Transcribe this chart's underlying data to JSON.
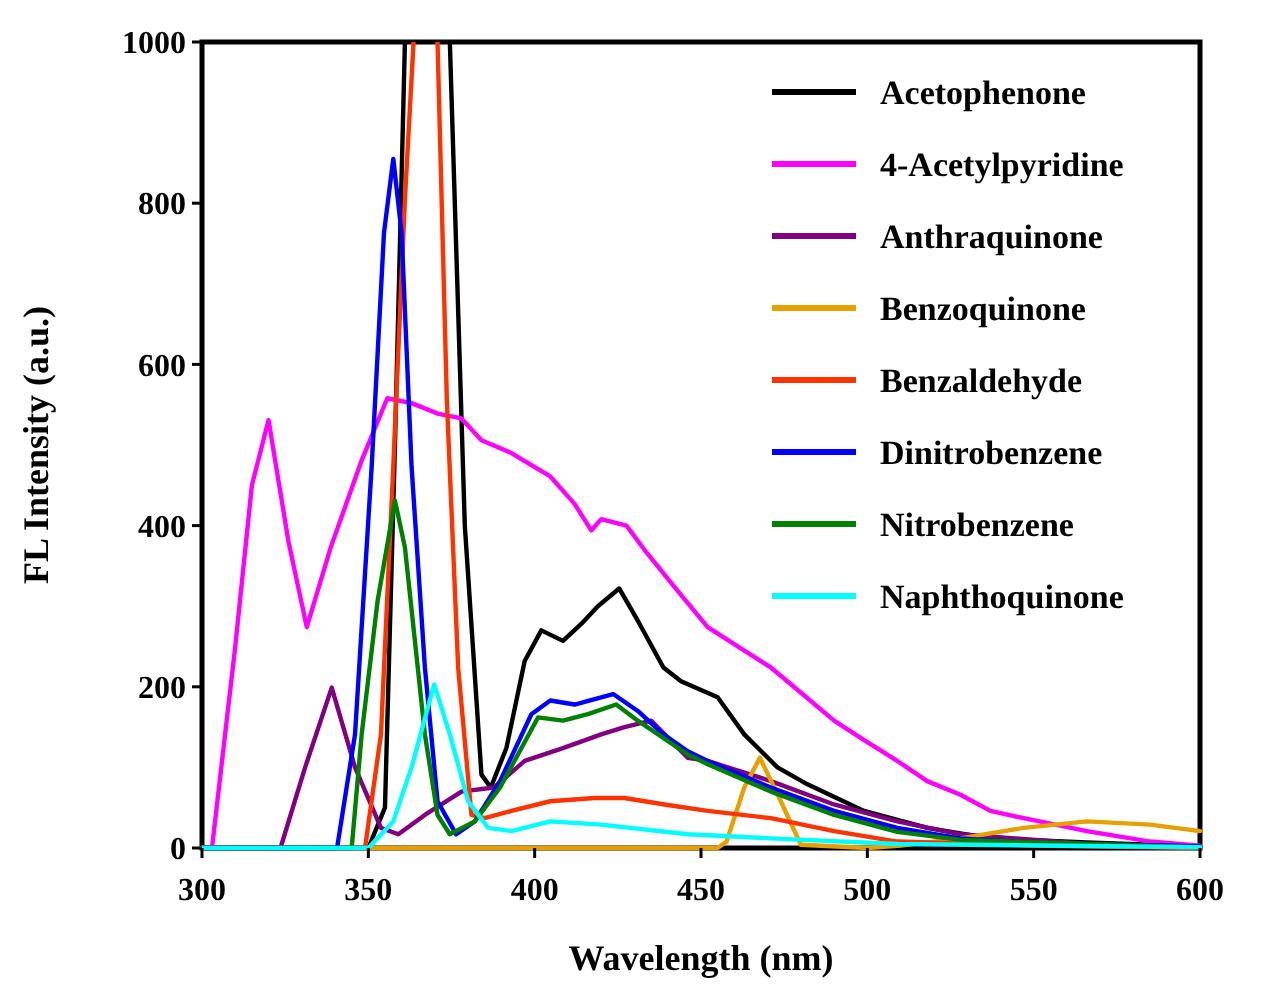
{
  "chart_data": {
    "type": "line",
    "xlabel": "Wavelength (nm)",
    "ylabel": "FL Intensity (a.u.)",
    "xlim": [
      300,
      600
    ],
    "ylim": [
      0,
      1000
    ],
    "xticks": [
      300,
      350,
      400,
      450,
      500,
      550,
      600
    ],
    "yticks": [
      0,
      200,
      400,
      600,
      800,
      1000
    ],
    "grid": false,
    "legend": "top right",
    "marker": "none",
    "line_style": "solid",
    "series": [
      {
        "name": "Acetophenone",
        "color": "#000000",
        "x": [
          300,
          350,
          355,
          358,
          361,
          362,
          374.5,
          379,
          384,
          386.8,
          391.5,
          397,
          402,
          408.5,
          414,
          419,
          425.4,
          431,
          438.7,
          444,
          455,
          463,
          473,
          482,
          499,
          518,
          537,
          566,
          600
        ],
        "values": [
          0,
          0,
          50,
          500,
          1000,
          null,
          1000,
          400,
          91,
          75,
          124,
          232,
          270,
          257,
          278,
          300,
          322,
          282,
          224,
          207,
          187,
          141,
          100,
          79,
          46,
          25,
          12,
          7,
          2
        ]
      },
      {
        "name": "4-Acetylpyridine",
        "color": "#ff00ff",
        "x": [
          300,
          303,
          310,
          315,
          320,
          326,
          331.5,
          338.7,
          348,
          355.7,
          363,
          370.8,
          378,
          384,
          393,
          404.7,
          412,
          417,
          420,
          427.6,
          433,
          442,
          452,
          461.5,
          471,
          480.5,
          490,
          499.4,
          509,
          518,
          528,
          537,
          547,
          566,
          585,
          600
        ],
        "values": [
          0,
          0,
          250,
          450,
          531,
          380,
          274,
          373,
          481,
          558,
          552,
          539,
          533,
          506,
          490,
          461,
          427,
          394,
          408,
          400,
          370,
          324,
          274,
          249,
          224,
          191,
          158,
          133,
          108,
          83,
          66,
          46,
          37,
          21,
          8,
          3
        ]
      },
      {
        "name": "Anthraquinone",
        "color": "#800080",
        "x": [
          300,
          323.6,
          331,
          339,
          346,
          353.8,
          359,
          367,
          378,
          387.7,
          397,
          408.5,
          420,
          427,
          435,
          446,
          452,
          471,
          490,
          509,
          528,
          566,
          600
        ],
        "values": [
          0,
          0,
          100,
          199,
          100,
          25,
          17,
          41,
          70,
          75,
          108,
          124,
          141,
          150,
          158,
          112,
          108,
          83,
          54,
          33,
          17,
          5,
          2
        ]
      },
      {
        "name": "Benzoquinone",
        "color": "#e6a000",
        "x": [
          300,
          455,
          457.7,
          463,
          467.7,
          474,
          480,
          500,
          510,
          528,
          547,
          566,
          585,
          600
        ],
        "values": [
          0,
          0,
          8,
          75,
          112,
          58,
          4,
          0,
          3,
          12,
          25,
          33,
          29,
          21
        ]
      },
      {
        "name": "Benzaldehyde",
        "color": "#ff3300",
        "x": [
          300,
          349,
          353.8,
          357.5,
          361,
          363.6,
          364,
          370.8,
          373.6,
          377,
          381,
          385,
          393,
          404.7,
          418,
          427,
          439,
          452,
          471,
          490,
          509,
          550,
          600
        ],
        "values": [
          0,
          0,
          141,
          473,
          805,
          1000,
          null,
          1000,
          556,
          224,
          41,
          37,
          46,
          58,
          62,
          62,
          54,
          46,
          37,
          21,
          8,
          3,
          0
        ]
      },
      {
        "name": "Dinitrobenzene",
        "color": "#0000ff",
        "x": [
          300,
          340.6,
          346,
          351,
          354.7,
          357.5,
          360,
          363,
          367,
          370.8,
          376.4,
          382,
          389.6,
          399,
          404.7,
          412,
          420,
          423.6,
          431,
          438.7,
          446,
          452,
          471,
          490,
          509,
          528,
          547,
          600
        ],
        "values": [
          0,
          0,
          141,
          473,
          763,
          855,
          763,
          473,
          224,
          58,
          17,
          33,
          83,
          166,
          183,
          178,
          187,
          191,
          170,
          141,
          120,
          108,
          75,
          46,
          25,
          12,
          7,
          2
        ]
      },
      {
        "name": "Nitrobenzene",
        "color": "#008000",
        "x": [
          300,
          345,
          348,
          352.8,
          358,
          361,
          367,
          370.8,
          374.5,
          382,
          389.6,
          401,
          408.5,
          416,
          424.5,
          431,
          446,
          452,
          471,
          490,
          509,
          528,
          600
        ],
        "values": [
          0,
          0,
          141,
          307,
          431,
          373,
          141,
          41,
          17,
          33,
          75,
          162,
          158,
          166,
          178,
          158,
          116,
          104,
          70,
          41,
          20,
          10,
          1
        ]
      },
      {
        "name": "Naphthoquinone",
        "color": "#00ffff",
        "x": [
          300,
          350,
          357.5,
          363,
          369.8,
          374.5,
          380,
          386,
          393,
          404.7,
          420,
          446,
          471,
          509,
          600
        ],
        "values": [
          0,
          0,
          33,
          100,
          203,
          141,
          58,
          25,
          21,
          33,
          29,
          17,
          12,
          5,
          1
        ]
      }
    ]
  }
}
